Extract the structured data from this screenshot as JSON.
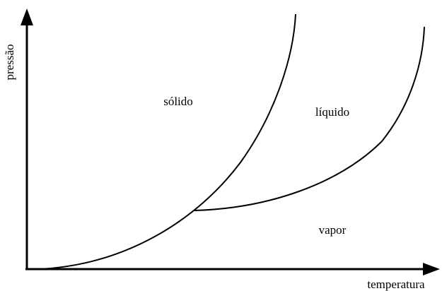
{
  "axes": {
    "y_label": "pressão",
    "x_label": "temperatura"
  },
  "regions": {
    "solid": "sólido",
    "liquid": "líquido",
    "vapor": "vapor"
  }
}
